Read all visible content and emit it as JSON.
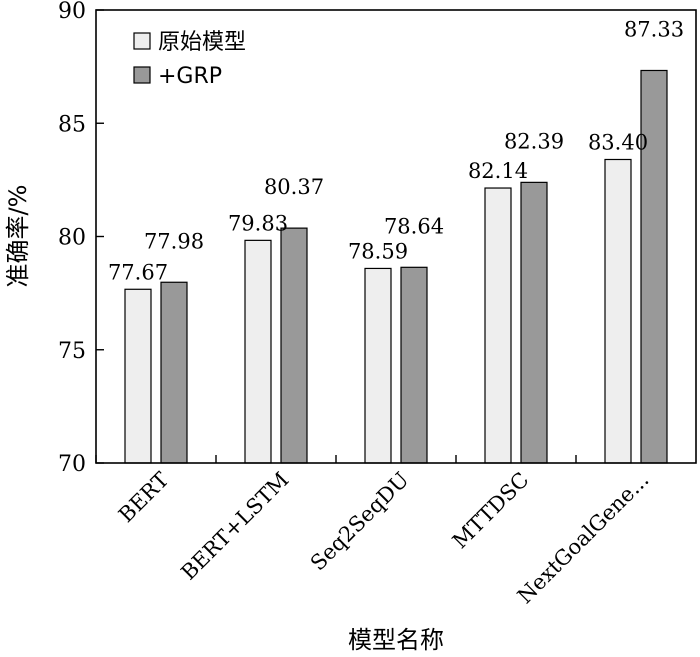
{
  "chart_data": {
    "type": "bar",
    "xlabel": "模型名称",
    "ylabel": "准确率/%",
    "ylim": [
      70,
      90
    ],
    "yticks": [
      70,
      75,
      80,
      85,
      90
    ],
    "categories": [
      "BERT",
      "BERT+LSTM",
      "Seq2SeqDU",
      "MTTDSC",
      "NextGoalGene..."
    ],
    "series": [
      {
        "name": "原始模型",
        "color": "#eeeeee",
        "values": [
          77.67,
          79.83,
          78.59,
          82.14,
          83.4
        ],
        "labels": [
          "77.67",
          "79.83",
          "78.59",
          "82.14",
          "83.40"
        ]
      },
      {
        "name": "+GRP",
        "color": "#999999",
        "values": [
          77.98,
          80.37,
          78.64,
          82.39,
          87.33
        ],
        "labels": [
          "77.98",
          "80.37",
          "78.64",
          "82.39",
          "87.33"
        ]
      }
    ],
    "legend_position": "top-left",
    "grid": false
  }
}
